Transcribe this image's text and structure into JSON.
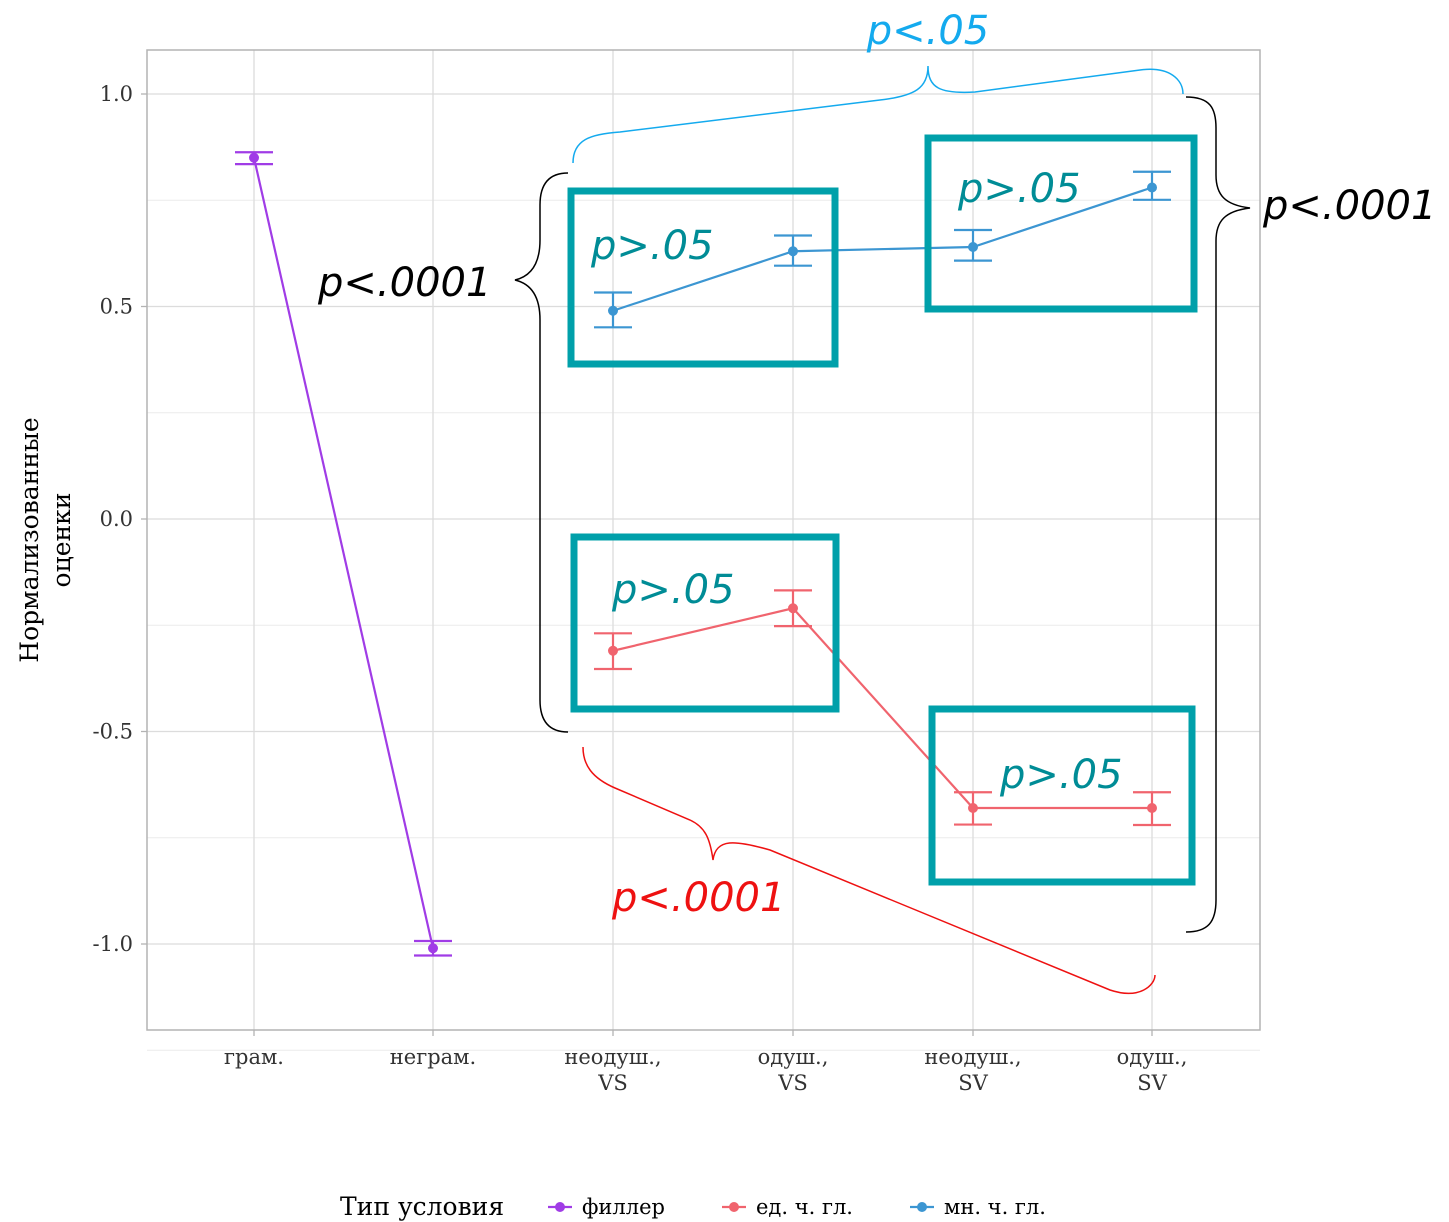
{
  "chart_data": {
    "type": "line",
    "ylabel_lines": [
      "Нормализованные",
      "оценки"
    ],
    "xlabel": "",
    "ylim": [
      -1.2,
      1.1
    ],
    "yticks": [
      1.0,
      0.5,
      0.0,
      -0.5,
      -1.0
    ],
    "ytick_labels": [
      "1.0",
      "0.5",
      "0.0",
      "-0.5",
      "-1.0"
    ],
    "grid": true,
    "categories": [
      [
        "грам."
      ],
      [
        "неграм."
      ],
      [
        "неодуш.,",
        "VS"
      ],
      [
        "одуш.,",
        "VS"
      ],
      [
        "неодуш.,",
        "SV"
      ],
      [
        "одуш.,",
        "SV"
      ]
    ],
    "series": [
      {
        "name": "филлер",
        "color": "#a03ce6",
        "points": [
          {
            "x": 0,
            "y": 0.85,
            "lo": 0.835,
            "hi": 0.863
          },
          {
            "x": 1,
            "y": -1.01,
            "lo": -1.027,
            "hi": -0.993
          }
        ]
      },
      {
        "name": "ед. ч. гл.",
        "color": "#f0646e",
        "points": [
          {
            "x": 2,
            "y": -0.31,
            "lo": -0.353,
            "hi": -0.269
          },
          {
            "x": 3,
            "y": -0.21,
            "lo": -0.252,
            "hi": -0.168
          },
          {
            "x": 4,
            "y": -0.68,
            "lo": -0.719,
            "hi": -0.643
          },
          {
            "x": 5,
            "y": -0.68,
            "lo": -0.72,
            "hi": -0.643
          }
        ]
      },
      {
        "name": "мн. ч. гл.",
        "color": "#3c96d2",
        "points": [
          {
            "x": 2,
            "y": 0.49,
            "lo": 0.451,
            "hi": 0.533
          },
          {
            "x": 3,
            "y": 0.63,
            "lo": 0.596,
            "hi": 0.667
          },
          {
            "x": 4,
            "y": 0.64,
            "lo": 0.608,
            "hi": 0.68
          },
          {
            "x": 5,
            "y": 0.78,
            "lo": 0.751,
            "hi": 0.817
          }
        ]
      }
    ],
    "legend": {
      "title": "Тип условия",
      "position": "bottom"
    },
    "annotations": {
      "top_blue": "p<.05",
      "right_black": "p<.0001",
      "left_black": "p<.0001",
      "bottom_red": "p<.0001",
      "box_upper_left": "p>.05",
      "box_upper_right": "p>.05",
      "box_lower_left": "p>.05",
      "box_lower_right": "p>.05"
    },
    "colors": {
      "box": "#00a0aa",
      "box_text": "#008c96",
      "blue_text": "#14aaee",
      "red_text": "#ee1111",
      "black_text": "#000000"
    }
  }
}
